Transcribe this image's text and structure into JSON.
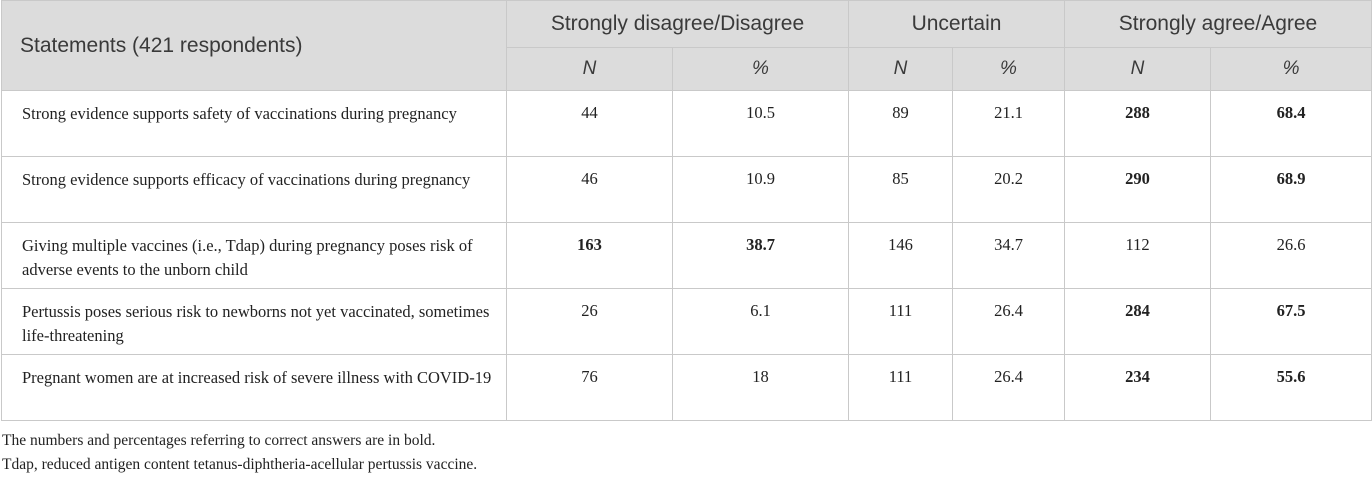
{
  "table": {
    "header": {
      "statements": "Statements (421 respondents)",
      "groups": [
        "Strongly disagree/Disagree",
        "Uncertain",
        "Strongly agree/Agree"
      ],
      "subcols": [
        "N",
        "%",
        "N",
        "%",
        "N",
        "%"
      ]
    },
    "rows": [
      {
        "statement": "Strong evidence supports safety of vaccinations during pregnancy",
        "values": [
          "44",
          "10.5",
          "89",
          "21.1",
          "288",
          "68.4"
        ],
        "bold": [
          false,
          false,
          false,
          false,
          true,
          true
        ]
      },
      {
        "statement": "Strong evidence supports efficacy of vaccinations during pregnancy",
        "values": [
          "46",
          "10.9",
          "85",
          "20.2",
          "290",
          "68.9"
        ],
        "bold": [
          false,
          false,
          false,
          false,
          true,
          true
        ]
      },
      {
        "statement": "Giving multiple vaccines (i.e., Tdap) during pregnancy poses risk of adverse events to the unborn child",
        "values": [
          "163",
          "38.7",
          "146",
          "34.7",
          "112",
          "26.6"
        ],
        "bold": [
          true,
          true,
          false,
          false,
          false,
          false
        ]
      },
      {
        "statement": "Pertussis poses serious risk to newborns not yet vaccinated, sometimes life-threatening",
        "values": [
          "26",
          "6.1",
          "111",
          "26.4",
          "284",
          "67.5"
        ],
        "bold": [
          false,
          false,
          false,
          false,
          true,
          true
        ]
      },
      {
        "statement": "Pregnant women are at increased risk of severe illness with COVID-19",
        "values": [
          "76",
          "18",
          "111",
          "26.4",
          "234",
          "55.6"
        ],
        "bold": [
          false,
          false,
          false,
          false,
          true,
          true
        ]
      }
    ]
  },
  "notes": [
    "The numbers and percentages referring to correct answers are in bold.",
    "Tdap, reduced antigen content tetanus-diphtheria-acellular pertussis vaccine."
  ],
  "colors": {
    "header_bg": "#dcdcdc",
    "border": "#c9c9c9"
  }
}
